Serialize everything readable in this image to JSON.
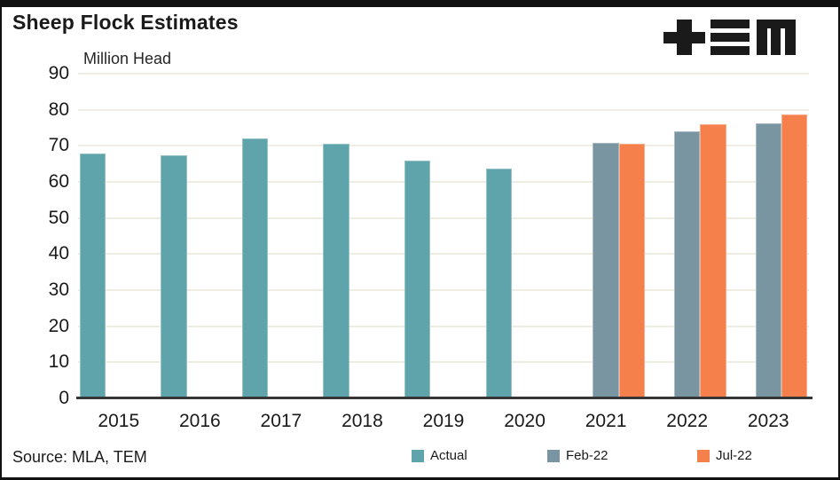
{
  "header": {
    "title": "Sheep Flock Estimates",
    "logo_name": "TEM"
  },
  "footer": {
    "source": "Source: MLA, TEM"
  },
  "chart_data": {
    "type": "bar",
    "title": "Sheep Flock Estimates",
    "axis_title": "Million Head",
    "categories": [
      "2015",
      "2016",
      "2017",
      "2018",
      "2019",
      "2020",
      "2021",
      "2022",
      "2023"
    ],
    "series": [
      {
        "name": "Actual",
        "color": "#5FA4AB",
        "values": [
          67.8,
          67.5,
          72.1,
          70.6,
          65.8,
          63.8,
          null,
          null,
          null
        ]
      },
      {
        "name": "Feb-22",
        "color": "#7A95A2",
        "values": [
          null,
          null,
          null,
          null,
          null,
          null,
          70.9,
          74.1,
          76.2
        ]
      },
      {
        "name": "Jul-22",
        "color": "#F5804B",
        "values": [
          null,
          null,
          null,
          null,
          null,
          null,
          70.5,
          75.9,
          78.7
        ]
      }
    ],
    "ylim": [
      0,
      90
    ],
    "ytick_step": 10,
    "grid": true,
    "gridline_color": "#efede2",
    "axis_line_color": "#363636",
    "legend_position": "bottom"
  }
}
